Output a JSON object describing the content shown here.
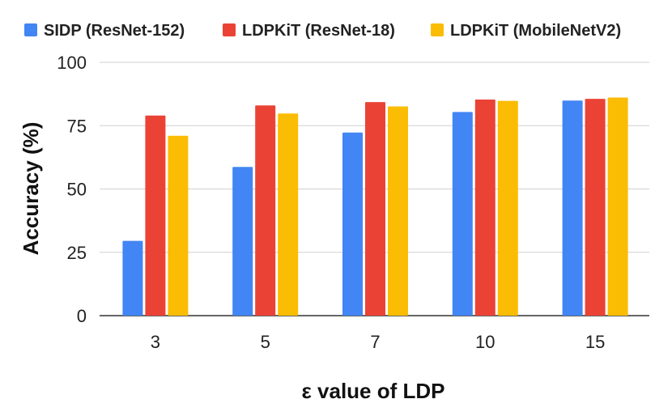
{
  "chart_data": {
    "type": "bar",
    "title": "",
    "xlabel": "ε value of LDP",
    "ylabel": "Accuracy (%)",
    "categories": [
      "3",
      "5",
      "7",
      "10",
      "15"
    ],
    "ylim": [
      0,
      100
    ],
    "yticks": [
      0,
      25,
      50,
      75,
      100
    ],
    "grid": true,
    "legend_position": "top",
    "series": [
      {
        "name": "SIDP (ResNet-152)",
        "color": "#4285F4",
        "values": [
          29.5,
          58.7,
          72.3,
          80.4,
          84.9
        ]
      },
      {
        "name": "LDPKiT (ResNet-18)",
        "color": "#EA4335",
        "values": [
          79.0,
          83.0,
          84.3,
          85.3,
          85.6
        ]
      },
      {
        "name": "LDPKiT (MobileNetV2)",
        "color": "#FBBC04",
        "values": [
          71.0,
          79.8,
          82.6,
          84.8,
          86.1
        ]
      }
    ]
  }
}
